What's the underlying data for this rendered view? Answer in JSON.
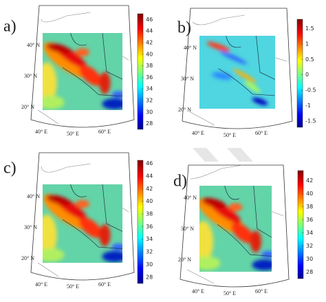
{
  "panels": [
    {
      "label": "a)",
      "colorbar": {
        "lim": [
          27,
          47
        ],
        "ticks": [
          46,
          44,
          42,
          40,
          38,
          36,
          34,
          32,
          30,
          28
        ]
      },
      "lat_labels": [
        "40° N",
        "30° N",
        "20° N"
      ],
      "lon_labels": [
        "40° E",
        "50° E",
        "60° E"
      ]
    },
    {
      "label": "b)",
      "colorbar": {
        "lim": [
          -1.7,
          1.8
        ],
        "ticks": [
          1.5,
          1,
          0.5,
          0,
          -0.5,
          -1,
          -1.5
        ]
      },
      "lat_labels": [
        "40° N",
        "30° N",
        "20° N"
      ],
      "lon_labels": [
        "40° E",
        "50° E",
        "60° E"
      ]
    },
    {
      "label": "c)",
      "colorbar": {
        "lim": [
          27,
          46.5
        ],
        "ticks": [
          46,
          44,
          42,
          40,
          38,
          36,
          34,
          32,
          30,
          28
        ]
      },
      "lat_labels": [
        "40° N",
        "30° N",
        "20° N"
      ],
      "lon_labels": [
        "40° E",
        "50° E",
        "60° E"
      ]
    },
    {
      "label": "d)",
      "colorbar": {
        "lim": [
          27,
          43.5
        ],
        "ticks": [
          42,
          40,
          38,
          36,
          34,
          32,
          30,
          28
        ]
      },
      "lat_labels": [
        "40° N",
        "30° N",
        "20° N"
      ],
      "lon_labels": [
        "40° E",
        "50° E",
        "60° E"
      ]
    }
  ]
}
